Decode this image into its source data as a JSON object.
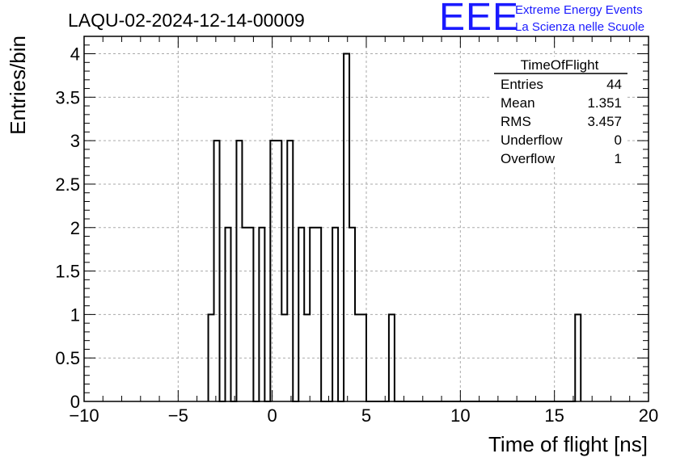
{
  "title": "LAQU-02-2024-12-14-00009",
  "brand": {
    "logo": "EEE",
    "line1": "Extreme Energy Events",
    "line2": "La Scienza nelle Scuole",
    "color": "#1a1aff"
  },
  "stats": {
    "title": "TimeOfFlight",
    "rows": [
      {
        "label": "Entries",
        "value": "44"
      },
      {
        "label": "Mean",
        "value": "1.351"
      },
      {
        "label": "RMS",
        "value": "3.457"
      },
      {
        "label": "Underflow",
        "value": "0"
      },
      {
        "label": "Overflow",
        "value": "1"
      }
    ]
  },
  "chart_data": {
    "type": "histogram",
    "title": "LAQU-02-2024-12-14-00009",
    "xlabel": "Time of flight [ns]",
    "ylabel": "Entries/bin",
    "xlim": [
      -10,
      20
    ],
    "ylim": [
      0,
      4.2
    ],
    "x_ticks": [
      -10,
      -5,
      0,
      5,
      10,
      15,
      20
    ],
    "x_tick_labels": [
      "−10",
      "−5",
      "0",
      "5",
      "10",
      "15",
      "20"
    ],
    "y_ticks": [
      0,
      0.5,
      1,
      1.5,
      2,
      2.5,
      3,
      3.5,
      4
    ],
    "y_tick_labels": [
      "0",
      "0.5",
      "1",
      "1.5",
      "2",
      "2.5",
      "3",
      "3.5",
      "4"
    ],
    "grid": true,
    "bin_edges": [
      -3.4,
      -3.1,
      -2.8,
      -2.5,
      -2.2,
      -1.9,
      -1.6,
      -1.3,
      -1.0,
      -0.7,
      -0.4,
      -0.1,
      0.2,
      0.5,
      0.8,
      1.1,
      1.4,
      1.7,
      2.0,
      2.3,
      2.6,
      2.9,
      3.2,
      3.5,
      3.8,
      4.1,
      4.4,
      4.7,
      5.0,
      5.3,
      5.6,
      5.9,
      6.2,
      6.5,
      16.1,
      16.4
    ],
    "counts": [
      1,
      3,
      0,
      2,
      0,
      3,
      2,
      2,
      0,
      2,
      0,
      3,
      3,
      1,
      3,
      0,
      2,
      1,
      2,
      2,
      0,
      0,
      2,
      0,
      4,
      2,
      1,
      1,
      0,
      0,
      0,
      0,
      1,
      0,
      1
    ],
    "line_color": "#000000"
  }
}
